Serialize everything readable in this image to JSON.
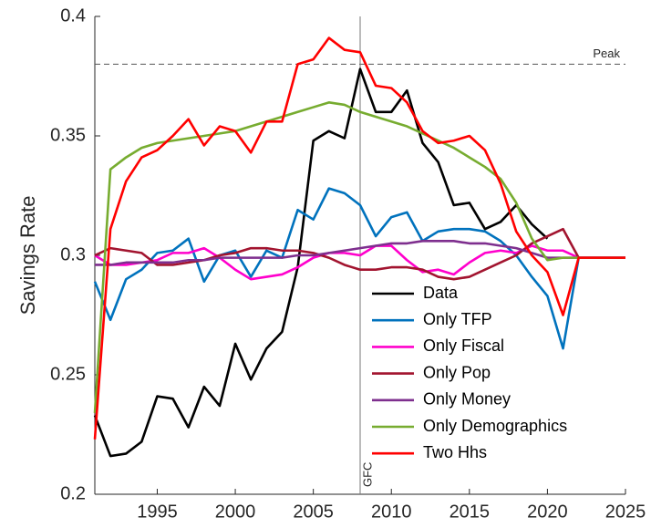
{
  "chart_data": {
    "type": "line",
    "y_label": "Savings Rate",
    "x": [
      1991,
      1992,
      1993,
      1994,
      1995,
      1996,
      1997,
      1998,
      1999,
      2000,
      2001,
      2002,
      2003,
      2004,
      2005,
      2006,
      2007,
      2008,
      2009,
      2010,
      2011,
      2012,
      2013,
      2014,
      2015,
      2016,
      2017,
      2018,
      2019,
      2020,
      2021,
      2022,
      2023,
      2024,
      2025
    ],
    "series": [
      {
        "name": "Data",
        "color": "#000000",
        "values": [
          0.233,
          0.216,
          0.217,
          0.222,
          0.241,
          0.24,
          0.228,
          0.245,
          0.237,
          0.263,
          0.248,
          0.261,
          0.268,
          0.295,
          0.348,
          0.352,
          0.349,
          0.378,
          0.36,
          0.36,
          0.369,
          0.347,
          0.339,
          0.321,
          0.322,
          0.311,
          0.314,
          0.321,
          0.313,
          0.307,
          null,
          null,
          null,
          null,
          null
        ]
      },
      {
        "name": "Only TFP",
        "color": "#0072BD",
        "values": [
          0.289,
          0.273,
          0.29,
          0.294,
          0.301,
          0.302,
          0.307,
          0.289,
          0.3,
          0.302,
          0.291,
          0.302,
          0.299,
          0.319,
          0.315,
          0.328,
          0.326,
          0.321,
          0.308,
          0.316,
          0.318,
          0.306,
          0.31,
          0.311,
          0.311,
          0.31,
          0.306,
          0.3,
          0.291,
          0.283,
          0.261,
          0.299,
          0.299,
          0.299,
          0.299
        ]
      },
      {
        "name": "Only Fiscal",
        "color": "#FF00CC",
        "values": [
          0.3,
          0.296,
          0.296,
          0.297,
          0.298,
          0.301,
          0.301,
          0.303,
          0.299,
          0.294,
          0.29,
          0.291,
          0.292,
          0.295,
          0.299,
          0.301,
          0.301,
          0.3,
          0.304,
          0.304,
          0.298,
          0.293,
          0.294,
          0.292,
          0.297,
          0.301,
          0.302,
          0.301,
          0.304,
          0.302,
          0.302,
          0.299,
          0.299,
          0.299,
          0.299
        ]
      },
      {
        "name": "Only Pop",
        "color": "#A2142F",
        "values": [
          0.3,
          0.303,
          0.302,
          0.301,
          0.296,
          0.296,
          0.297,
          0.298,
          0.3,
          0.301,
          0.303,
          0.303,
          0.302,
          0.302,
          0.301,
          0.299,
          0.296,
          0.294,
          0.294,
          0.295,
          0.295,
          0.294,
          0.291,
          0.29,
          0.291,
          0.294,
          0.297,
          0.3,
          0.305,
          0.308,
          0.311,
          0.299,
          0.299,
          0.299,
          0.299
        ]
      },
      {
        "name": "Only Money",
        "color": "#7E2F8E",
        "values": [
          0.296,
          0.296,
          0.297,
          0.297,
          0.297,
          0.297,
          0.298,
          0.298,
          0.299,
          0.299,
          0.299,
          0.299,
          0.299,
          0.3,
          0.3,
          0.301,
          0.302,
          0.303,
          0.304,
          0.305,
          0.305,
          0.306,
          0.306,
          0.306,
          0.305,
          0.305,
          0.304,
          0.303,
          0.301,
          0.299,
          0.299,
          0.299,
          0.299,
          0.299,
          0.299
        ]
      },
      {
        "name": "Only Demographics",
        "color": "#77AC30",
        "values": [
          0.234,
          0.336,
          0.341,
          0.345,
          0.347,
          0.348,
          0.349,
          0.35,
          0.351,
          0.352,
          0.354,
          0.356,
          0.358,
          0.36,
          0.362,
          0.364,
          0.363,
          0.36,
          0.358,
          0.356,
          0.354,
          0.351,
          0.348,
          0.345,
          0.341,
          0.337,
          0.332,
          0.322,
          0.307,
          0.298,
          0.299,
          0.299,
          0.299,
          0.299,
          0.299
        ]
      },
      {
        "name": "Two Hhs",
        "color": "#FF0000",
        "values": [
          0.223,
          0.311,
          0.331,
          0.341,
          0.344,
          0.35,
          0.357,
          0.346,
          0.354,
          0.352,
          0.343,
          0.356,
          0.356,
          0.38,
          0.382,
          0.391,
          0.386,
          0.385,
          0.371,
          0.37,
          0.364,
          0.352,
          0.347,
          0.348,
          0.35,
          0.344,
          0.33,
          0.31,
          0.3,
          0.293,
          0.275,
          0.299,
          0.299,
          0.299,
          0.299
        ]
      }
    ],
    "xlim": [
      1991,
      2025
    ],
    "xticks": [
      1995,
      2000,
      2005,
      2010,
      2015,
      2020,
      2025
    ],
    "ylim": [
      0.2,
      0.4
    ],
    "yticks": [
      0.2,
      0.25,
      0.3,
      0.35,
      0.4
    ],
    "hline": {
      "value": 0.38,
      "label": "Peak"
    },
    "vline": {
      "value": 2008,
      "label": "GFC"
    },
    "legend": "lower-center"
  }
}
